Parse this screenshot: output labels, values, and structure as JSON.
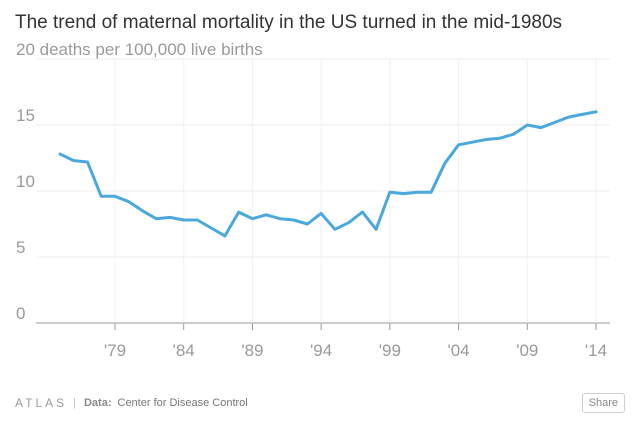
{
  "title": "The trend of maternal mortality in the US turned in the mid-1980s",
  "footer": {
    "brand": "ATLAS",
    "separator": "|",
    "source_label": "Data:",
    "source": "Center for Disease Control",
    "share_label": "Share"
  },
  "chart_data": {
    "type": "line",
    "title": "The trend of maternal mortality in the US turned in the mid-1980s",
    "ylabel": "deaths per 100,000 live births",
    "top_tick_unit": "deaths per 100,000 live births",
    "xlim": [
      1975,
      2014
    ],
    "ylim": [
      0,
      20
    ],
    "yticks": [
      0,
      5,
      10,
      15,
      20
    ],
    "xticks": [
      1979,
      1984,
      1989,
      1994,
      1999,
      2004,
      2009,
      2014
    ],
    "xtick_labels": [
      "'79",
      "'84",
      "'89",
      "'94",
      "'99",
      "'04",
      "'09",
      "'14"
    ],
    "grid": true,
    "color": "#4aa8dc",
    "x": [
      1975,
      1976,
      1977,
      1978,
      1979,
      1980,
      1981,
      1982,
      1983,
      1984,
      1985,
      1986,
      1987,
      1988,
      1989,
      1990,
      1991,
      1992,
      1993,
      1994,
      1995,
      1996,
      1997,
      1998,
      1999,
      2000,
      2001,
      2002,
      2003,
      2004,
      2005,
      2006,
      2007,
      2008,
      2009,
      2010,
      2011,
      2012,
      2013,
      2014
    ],
    "y": [
      12.8,
      12.3,
      12.2,
      9.6,
      9.6,
      9.2,
      8.5,
      7.9,
      8.0,
      7.8,
      7.8,
      7.2,
      6.6,
      8.4,
      7.9,
      8.2,
      7.9,
      7.8,
      7.5,
      8.3,
      7.1,
      7.6,
      8.4,
      7.1,
      9.9,
      9.8,
      9.9,
      9.9,
      12.1,
      13.5,
      13.7,
      13.9,
      14.0,
      14.3,
      15.0,
      14.8,
      15.2,
      15.6,
      15.8,
      16.0
    ]
  }
}
